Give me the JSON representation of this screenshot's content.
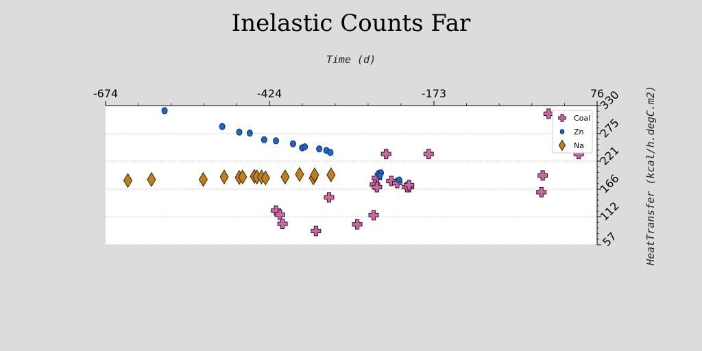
{
  "chart_data": {
    "type": "scatter",
    "title": "Inelastic Counts Far",
    "xlabel": "Time (d)",
    "ylabel": "HeatTransfer (kcal/h.degC.m2)",
    "xlim": [
      -674,
      76
    ],
    "ylim": [
      57,
      330
    ],
    "x_ticks": [
      "-674",
      "-424",
      "-173",
      "76"
    ],
    "y_ticks": [
      "57",
      "112",
      "166",
      "221",
      "275",
      "330"
    ],
    "x_axis_position": "top",
    "y_axis_position": "right",
    "grid": "horizontal dotted",
    "legend_position": "top-right",
    "series": [
      {
        "name": "Coal",
        "color": "#c76aa0",
        "marker": "plus",
        "points": [
          [
            2,
            314
          ],
          [
            48,
            235
          ],
          [
            -7,
            193
          ],
          [
            -9,
            160
          ],
          [
            -181,
            235
          ],
          [
            -246,
            235
          ],
          [
            -238,
            182
          ],
          [
            -229,
            178
          ],
          [
            -211,
            170
          ],
          [
            -214,
            170
          ],
          [
            -211,
            174
          ],
          [
            -260,
            188
          ],
          [
            -263,
            175
          ],
          [
            -260,
            170
          ],
          [
            -265,
            115
          ],
          [
            -290,
            97
          ],
          [
            -333,
            150
          ],
          [
            -414,
            124
          ],
          [
            -408,
            116
          ],
          [
            -404,
            98
          ],
          [
            -353,
            84
          ]
        ]
      },
      {
        "name": "Zn",
        "color": "#1f63c6",
        "marker": "circle",
        "points": [
          [
            -584,
            320
          ],
          [
            -496,
            289
          ],
          [
            -470,
            278
          ],
          [
            -454,
            276
          ],
          [
            -432,
            263
          ],
          [
            -414,
            261
          ],
          [
            -388,
            255
          ],
          [
            -374,
            247
          ],
          [
            -370,
            249
          ],
          [
            -348,
            245
          ],
          [
            -337,
            242
          ],
          [
            -331,
            238
          ],
          [
            -257,
            197
          ],
          [
            -254,
            198
          ],
          [
            -256,
            192
          ],
          [
            -226,
            184
          ]
        ]
      },
      {
        "name": "Na",
        "color": "#c07f1e",
        "marker": "diamond",
        "points": [
          [
            -640,
            183
          ],
          [
            -604,
            185
          ],
          [
            -525,
            185
          ],
          [
            -493,
            190
          ],
          [
            -470,
            189
          ],
          [
            -465,
            190
          ],
          [
            -447,
            191
          ],
          [
            -443,
            190
          ],
          [
            -436,
            190
          ],
          [
            -430,
            188
          ],
          [
            -400,
            190
          ],
          [
            -378,
            195
          ],
          [
            -357,
            188
          ],
          [
            -355,
            194
          ],
          [
            -330,
            194
          ]
        ]
      }
    ]
  }
}
